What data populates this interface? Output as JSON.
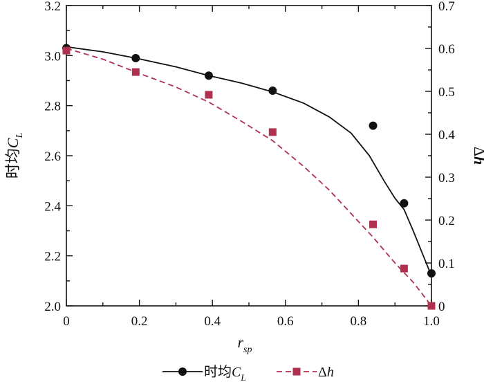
{
  "chart_data": {
    "type": "line",
    "xlabel": {
      "main": "r",
      "sub": "sp"
    },
    "ylabel_left": {
      "prefix": "时均",
      "main": "C",
      "sub": "L"
    },
    "ylabel_right": {
      "prefix": "Δ",
      "main": "h"
    },
    "xlim": [
      0,
      1.0
    ],
    "ylim_left": [
      2.0,
      3.2
    ],
    "ylim_right": [
      0,
      0.7
    ],
    "x_ticks": [
      "0",
      "0.2",
      "0.4",
      "0.6",
      "0.8",
      "1.0"
    ],
    "y_ticks_left": [
      "2.0",
      "2.2",
      "2.4",
      "2.6",
      "2.8",
      "3.0",
      "3.2"
    ],
    "y_ticks_right": [
      "0",
      "0.1",
      "0.2",
      "0.3",
      "0.4",
      "0.5",
      "0.6",
      "0.7"
    ],
    "grid": false,
    "legend": "bottom",
    "series": [
      {
        "name": "时均C_L",
        "legend_prefix": "时均",
        "legend_main": "C",
        "legend_sub": "L",
        "axis": "left",
        "marker": "circle",
        "line_style": "solid",
        "color": "#111111",
        "x": [
          0,
          0.19,
          0.39,
          0.565,
          0.84,
          0.925,
          1.0
        ],
        "y": [
          3.03,
          2.99,
          2.92,
          2.86,
          2.72,
          2.41,
          2.13
        ],
        "curve_x": [
          0,
          0.1,
          0.19,
          0.3,
          0.39,
          0.48,
          0.565,
          0.65,
          0.72,
          0.78,
          0.83,
          0.87,
          0.9,
          0.925,
          0.95,
          0.975,
          1.0
        ],
        "curve_y": [
          3.035,
          3.015,
          2.99,
          2.955,
          2.92,
          2.89,
          2.855,
          2.81,
          2.755,
          2.69,
          2.6,
          2.5,
          2.43,
          2.385,
          2.3,
          2.21,
          2.12
        ]
      },
      {
        "name": "Δh",
        "legend_prefix": "Δ",
        "legend_main": "h",
        "legend_sub": "",
        "axis": "right",
        "marker": "square",
        "line_style": "dashed",
        "color": "#b03050",
        "x": [
          0,
          0.19,
          0.39,
          0.565,
          0.84,
          0.925,
          1.0
        ],
        "y": [
          0.595,
          0.545,
          0.492,
          0.405,
          0.19,
          0.087,
          0.0
        ],
        "curve_x": [
          0,
          0.1,
          0.19,
          0.3,
          0.39,
          0.48,
          0.565,
          0.65,
          0.72,
          0.78,
          0.84,
          0.9,
          0.95,
          1.0
        ],
        "curve_y": [
          0.6,
          0.575,
          0.545,
          0.51,
          0.475,
          0.43,
          0.385,
          0.325,
          0.27,
          0.215,
          0.16,
          0.1,
          0.055,
          0.0
        ]
      }
    ]
  }
}
